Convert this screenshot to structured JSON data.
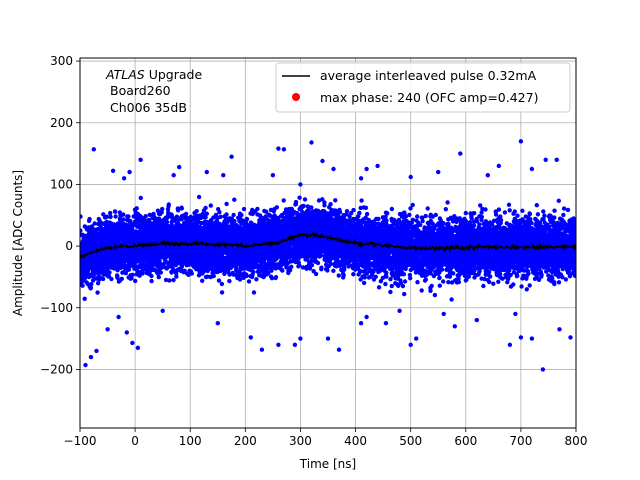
{
  "chart_data": {
    "type": "scatter",
    "xlabel": "Time [ns]",
    "ylabel": "Amplitude [ADC Counts]",
    "xlim": [
      -100,
      800
    ],
    "ylim": [
      -295,
      305
    ],
    "xticks": [
      -100,
      0,
      100,
      200,
      300,
      400,
      500,
      600,
      700,
      800
    ],
    "yticks": [
      -200,
      -100,
      0,
      100,
      200,
      300
    ],
    "grid": true,
    "legend_position": "top-right",
    "annotation": {
      "line1_italic": "ATLAS",
      "line1_rest": " Upgrade",
      "line2": "Board260",
      "line3": "Ch006 35dB"
    },
    "series": [
      {
        "name": "average interleaved pulse 0.32mA",
        "type": "line",
        "color": "#000000",
        "x": [
          -100,
          -80,
          -60,
          -40,
          -20,
          0,
          20,
          40,
          60,
          80,
          100,
          120,
          140,
          160,
          180,
          200,
          220,
          240,
          260,
          280,
          300,
          320,
          340,
          360,
          380,
          400,
          420,
          440,
          460,
          480,
          500,
          520,
          540,
          560,
          580,
          600,
          620,
          640,
          660,
          680,
          700,
          720,
          740,
          760,
          780,
          800
        ],
        "y": [
          -18,
          -10,
          -5,
          -2,
          0,
          0,
          2,
          3,
          5,
          3,
          3,
          4,
          2,
          3,
          2,
          0,
          2,
          4,
          6,
          12,
          18,
          19,
          16,
          12,
          8,
          5,
          3,
          2,
          0,
          -2,
          -3,
          -4,
          -3,
          -3,
          -2,
          -3,
          -2,
          -1,
          -2,
          -2,
          -2,
          -2,
          -1,
          -2,
          -1,
          -2
        ]
      },
      {
        "name": "max phase: 240 (OFC amp=0.427)",
        "type": "scatter",
        "color": "#0000ff",
        "legend_marker_color": "#ff0000",
        "point_count_approx": 12000,
        "noise_sigma_adc": 22,
        "outlier_points": [
          [
            -75,
            157
          ],
          [
            -40,
            122
          ],
          [
            -10,
            120
          ],
          [
            -20,
            110
          ],
          [
            10,
            140
          ],
          [
            70,
            115
          ],
          [
            80,
            128
          ],
          [
            130,
            120
          ],
          [
            160,
            115
          ],
          [
            175,
            145
          ],
          [
            250,
            115
          ],
          [
            260,
            158
          ],
          [
            270,
            157
          ],
          [
            300,
            100
          ],
          [
            320,
            168
          ],
          [
            340,
            138
          ],
          [
            360,
            125
          ],
          [
            410,
            110
          ],
          [
            420,
            125
          ],
          [
            440,
            130
          ],
          [
            500,
            112
          ],
          [
            550,
            120
          ],
          [
            590,
            150
          ],
          [
            640,
            115
          ],
          [
            660,
            130
          ],
          [
            700,
            170
          ],
          [
            720,
            125
          ],
          [
            745,
            140
          ],
          [
            765,
            140
          ],
          [
            -90,
            -193
          ],
          [
            -80,
            -180
          ],
          [
            -70,
            -170
          ],
          [
            -50,
            -135
          ],
          [
            -30,
            -115
          ],
          [
            -15,
            -140
          ],
          [
            -5,
            -157
          ],
          [
            5,
            -165
          ],
          [
            50,
            -105
          ],
          [
            150,
            -125
          ],
          [
            210,
            -148
          ],
          [
            230,
            -168
          ],
          [
            260,
            -160
          ],
          [
            290,
            -160
          ],
          [
            300,
            -150
          ],
          [
            350,
            -150
          ],
          [
            370,
            -168
          ],
          [
            410,
            -125
          ],
          [
            420,
            -115
          ],
          [
            455,
            -125
          ],
          [
            480,
            -105
          ],
          [
            500,
            -160
          ],
          [
            510,
            -150
          ],
          [
            560,
            -110
          ],
          [
            620,
            -120
          ],
          [
            680,
            -160
          ],
          [
            700,
            -148
          ],
          [
            720,
            -150
          ],
          [
            740,
            -200
          ],
          [
            770,
            -135
          ],
          [
            790,
            -148
          ],
          [
            690,
            -110
          ],
          [
            580,
            -130
          ]
        ]
      }
    ]
  }
}
